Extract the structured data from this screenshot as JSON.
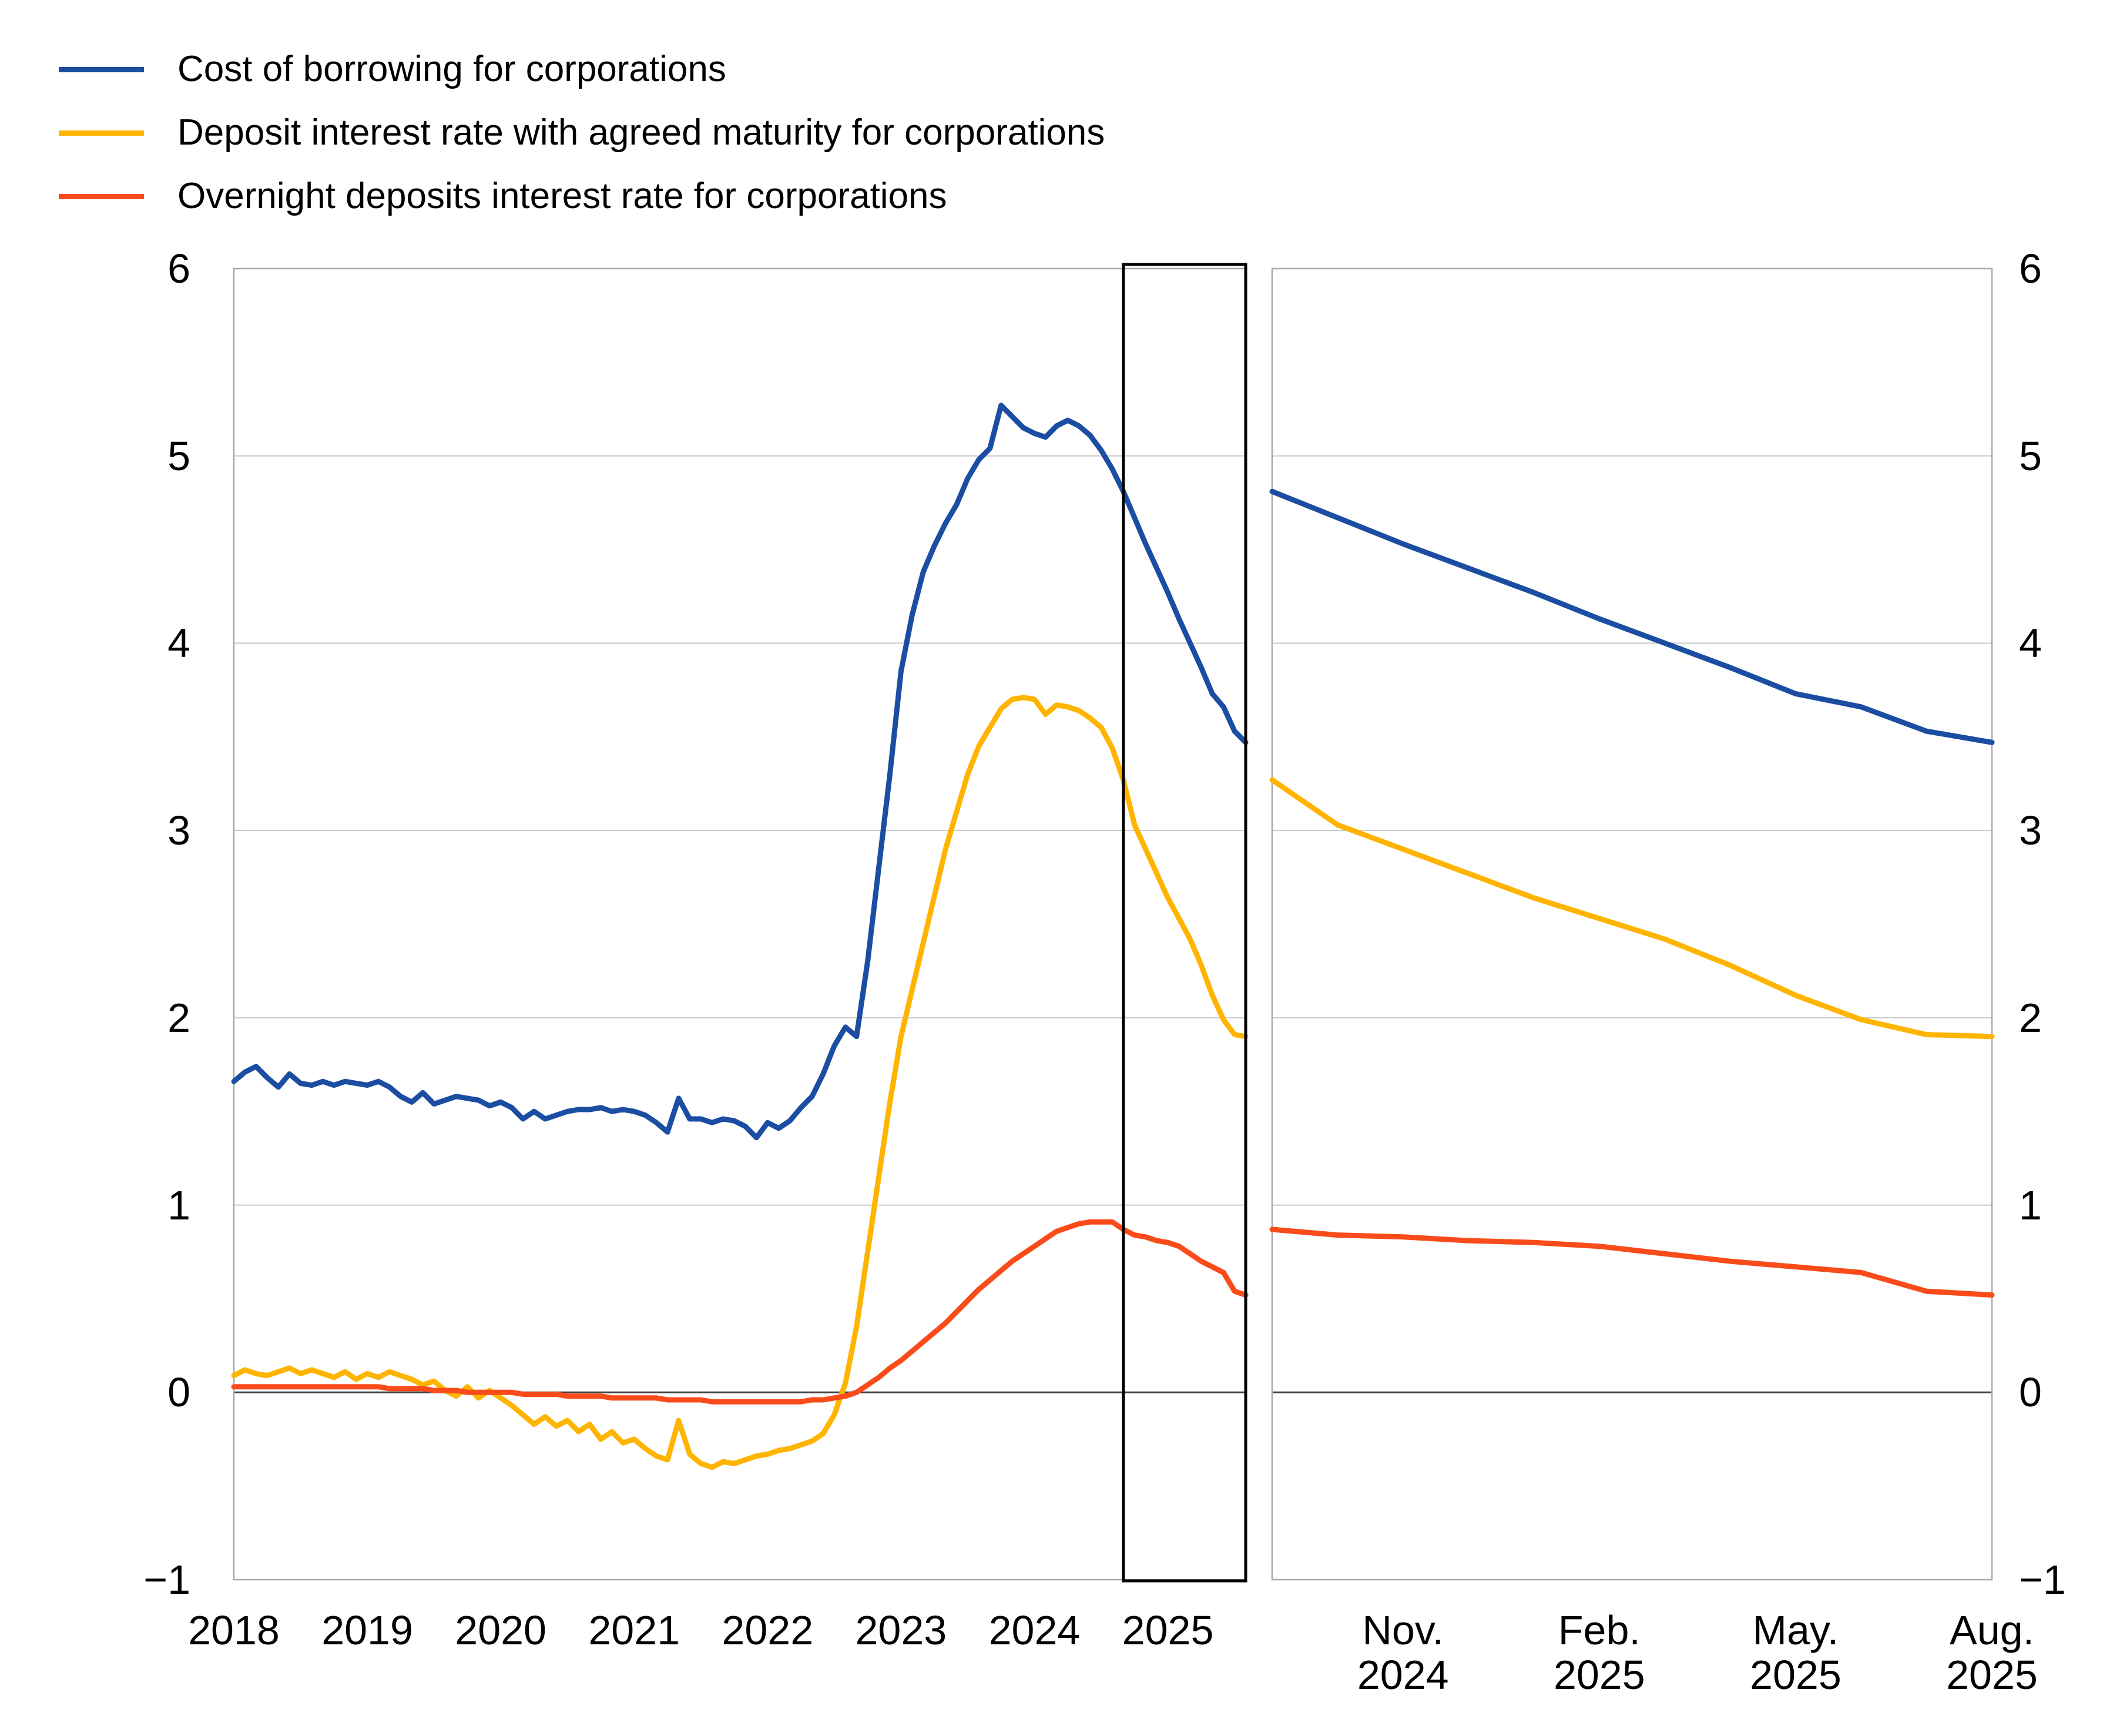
{
  "page": {
    "background": "#ffffff"
  },
  "colors": {
    "blue": "#1B4EA2",
    "yellow": "#FFB400",
    "red": "#FA4B1A",
    "grid": "#c9c9c9",
    "zero_line": "#3f3f3f",
    "panel_border": "#a9a9a9",
    "highlight_box": "#000000",
    "text": "#000000"
  },
  "legend": {
    "items": [
      {
        "label": "Cost of borrowing for corporations",
        "color": "#1B4EA2"
      },
      {
        "label": "Deposit interest rate with agreed maturity for corporations",
        "color": "#FFB400"
      },
      {
        "label": "Overnight deposits interest rate for corporations",
        "color": "#FA4B1A"
      }
    ]
  },
  "chart_data": {
    "type": "line",
    "title": "",
    "xlabel": "",
    "ylabel": "",
    "ylim": [
      -1,
      6
    ],
    "y_ticks": [
      6,
      5,
      4,
      3,
      2,
      1,
      0,
      -1
    ],
    "grid": true,
    "zero_line": true,
    "x_monthly_range": "2018-01 to 2025-08",
    "months_total": 92,
    "left_panel": {
      "x_tick_labels": [
        {
          "label": "2018",
          "month_index": 0
        },
        {
          "label": "2019",
          "month_index": 12
        },
        {
          "label": "2020",
          "month_index": 24
        },
        {
          "label": "2021",
          "month_index": 36
        },
        {
          "label": "2022",
          "month_index": 48
        },
        {
          "label": "2023",
          "month_index": 60
        },
        {
          "label": "2024",
          "month_index": 72
        },
        {
          "label": "2025",
          "month_index": 84
        }
      ],
      "highlight_box_from_index": 80,
      "highlight_box_to_index": 91
    },
    "right_panel": {
      "start_index": 80,
      "x_tick_labels": [
        {
          "label": "Nov.\n2024",
          "month_index": 82
        },
        {
          "label": "Feb.\n2025",
          "month_index": 85
        },
        {
          "label": "May.\n2025",
          "month_index": 88
        },
        {
          "label": "Aug.\n2025",
          "month_index": 91
        }
      ]
    },
    "series": [
      {
        "name": "Cost of borrowing for corporations",
        "color": "#1B4EA2",
        "values": [
          1.66,
          1.71,
          1.74,
          1.68,
          1.63,
          1.7,
          1.65,
          1.64,
          1.66,
          1.64,
          1.66,
          1.65,
          1.64,
          1.66,
          1.63,
          1.58,
          1.55,
          1.6,
          1.54,
          1.56,
          1.58,
          1.57,
          1.56,
          1.53,
          1.55,
          1.52,
          1.46,
          1.5,
          1.46,
          1.48,
          1.5,
          1.51,
          1.51,
          1.52,
          1.5,
          1.51,
          1.5,
          1.48,
          1.44,
          1.39,
          1.57,
          1.46,
          1.46,
          1.44,
          1.46,
          1.45,
          1.42,
          1.36,
          1.44,
          1.41,
          1.45,
          1.52,
          1.58,
          1.7,
          1.85,
          1.95,
          1.9,
          2.3,
          2.8,
          3.3,
          3.85,
          4.15,
          4.38,
          4.52,
          4.64,
          4.74,
          4.88,
          4.98,
          5.04,
          5.27,
          5.21,
          5.15,
          5.12,
          5.1,
          5.16,
          5.19,
          5.16,
          5.11,
          5.03,
          4.93,
          4.81,
          4.67,
          4.53,
          4.4,
          4.27,
          4.13,
          4.0,
          3.87,
          3.73,
          3.66,
          3.53,
          3.47
        ]
      },
      {
        "name": "Deposit interest rate with agreed maturity for corporations",
        "color": "#FFB400",
        "values": [
          0.09,
          0.12,
          0.1,
          0.09,
          0.11,
          0.13,
          0.1,
          0.12,
          0.1,
          0.08,
          0.11,
          0.07,
          0.1,
          0.08,
          0.11,
          0.09,
          0.07,
          0.04,
          0.06,
          0.01,
          -0.02,
          0.03,
          -0.03,
          0.01,
          -0.03,
          -0.07,
          -0.12,
          -0.17,
          -0.13,
          -0.18,
          -0.15,
          -0.21,
          -0.17,
          -0.25,
          -0.21,
          -0.27,
          -0.25,
          -0.3,
          -0.34,
          -0.36,
          -0.15,
          -0.33,
          -0.38,
          -0.4,
          -0.37,
          -0.38,
          -0.36,
          -0.34,
          -0.33,
          -0.31,
          -0.3,
          -0.28,
          -0.26,
          -0.22,
          -0.12,
          0.05,
          0.35,
          0.75,
          1.15,
          1.55,
          1.9,
          2.15,
          2.4,
          2.65,
          2.9,
          3.1,
          3.3,
          3.45,
          3.55,
          3.65,
          3.7,
          3.71,
          3.7,
          3.62,
          3.67,
          3.66,
          3.64,
          3.6,
          3.55,
          3.44,
          3.27,
          3.03,
          2.9,
          2.77,
          2.64,
          2.53,
          2.42,
          2.28,
          2.12,
          1.99,
          1.91,
          1.9
        ]
      },
      {
        "name": "Overnight deposits interest rate for corporations",
        "color": "#FA4B1A",
        "values": [
          0.03,
          0.03,
          0.03,
          0.03,
          0.03,
          0.03,
          0.03,
          0.03,
          0.03,
          0.03,
          0.03,
          0.03,
          0.03,
          0.03,
          0.02,
          0.02,
          0.02,
          0.02,
          0.01,
          0.01,
          0.01,
          0.0,
          0.0,
          0.0,
          0.0,
          0.0,
          -0.01,
          -0.01,
          -0.01,
          -0.01,
          -0.02,
          -0.02,
          -0.02,
          -0.02,
          -0.03,
          -0.03,
          -0.03,
          -0.03,
          -0.03,
          -0.04,
          -0.04,
          -0.04,
          -0.04,
          -0.05,
          -0.05,
          -0.05,
          -0.05,
          -0.05,
          -0.05,
          -0.05,
          -0.05,
          -0.05,
          -0.04,
          -0.04,
          -0.03,
          -0.02,
          0.0,
          0.04,
          0.08,
          0.13,
          0.17,
          0.22,
          0.27,
          0.32,
          0.37,
          0.43,
          0.49,
          0.55,
          0.6,
          0.65,
          0.7,
          0.74,
          0.78,
          0.82,
          0.86,
          0.88,
          0.9,
          0.91,
          0.91,
          0.91,
          0.87,
          0.84,
          0.83,
          0.81,
          0.8,
          0.78,
          0.74,
          0.7,
          0.67,
          0.64,
          0.54,
          0.52
        ]
      }
    ]
  }
}
